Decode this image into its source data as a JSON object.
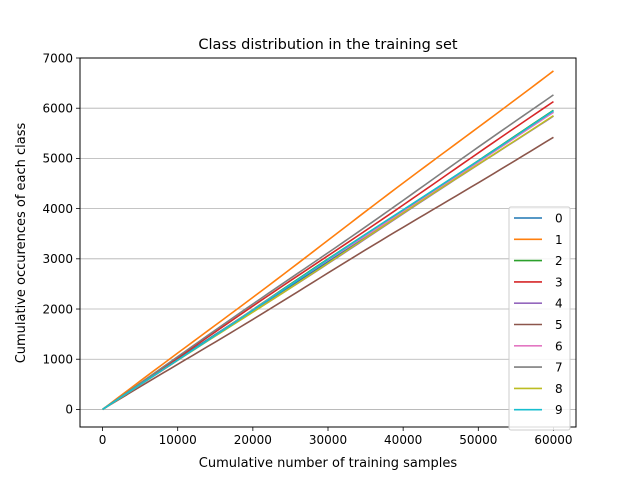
{
  "chart_data": {
    "type": "line",
    "title": "Class distribution in the training set",
    "xlabel": "Cumulative number of training samples",
    "ylabel": "Cumulative occurences of each class",
    "xlim": [
      -3000,
      63000
    ],
    "ylim": [
      -350,
      7000
    ],
    "xticks": [
      0,
      10000,
      20000,
      30000,
      40000,
      50000,
      60000
    ],
    "xtick_labels": [
      "0",
      "10000",
      "20000",
      "30000",
      "40000",
      "50000",
      "60000"
    ],
    "yticks": [
      0,
      1000,
      2000,
      3000,
      4000,
      5000,
      6000,
      7000
    ],
    "ytick_labels": [
      "0",
      "1000",
      "2000",
      "3000",
      "4000",
      "5000",
      "6000",
      "7000"
    ],
    "grid": "horizontal",
    "legend_position": "lower-right",
    "series": [
      {
        "name": "0",
        "color": "#1f77b4",
        "x": [
          0,
          60000
        ],
        "y": [
          0,
          5923
        ]
      },
      {
        "name": "1",
        "color": "#ff7f0e",
        "x": [
          0,
          60000
        ],
        "y": [
          0,
          6742
        ]
      },
      {
        "name": "2",
        "color": "#2ca02c",
        "x": [
          0,
          60000
        ],
        "y": [
          0,
          5958
        ]
      },
      {
        "name": "3",
        "color": "#d62728",
        "x": [
          0,
          60000
        ],
        "y": [
          0,
          6131
        ]
      },
      {
        "name": "4",
        "color": "#9467bd",
        "x": [
          0,
          60000
        ],
        "y": [
          0,
          5842
        ]
      },
      {
        "name": "5",
        "color": "#8c564b",
        "x": [
          0,
          60000
        ],
        "y": [
          0,
          5421
        ]
      },
      {
        "name": "6",
        "color": "#e377c2",
        "x": [
          0,
          60000
        ],
        "y": [
          0,
          5918
        ]
      },
      {
        "name": "7",
        "color": "#7f7f7f",
        "x": [
          0,
          60000
        ],
        "y": [
          0,
          6265
        ]
      },
      {
        "name": "8",
        "color": "#bcbd22",
        "x": [
          0,
          60000
        ],
        "y": [
          0,
          5851
        ]
      },
      {
        "name": "9",
        "color": "#17becf",
        "x": [
          0,
          60000
        ],
        "y": [
          0,
          5949
        ]
      }
    ]
  }
}
